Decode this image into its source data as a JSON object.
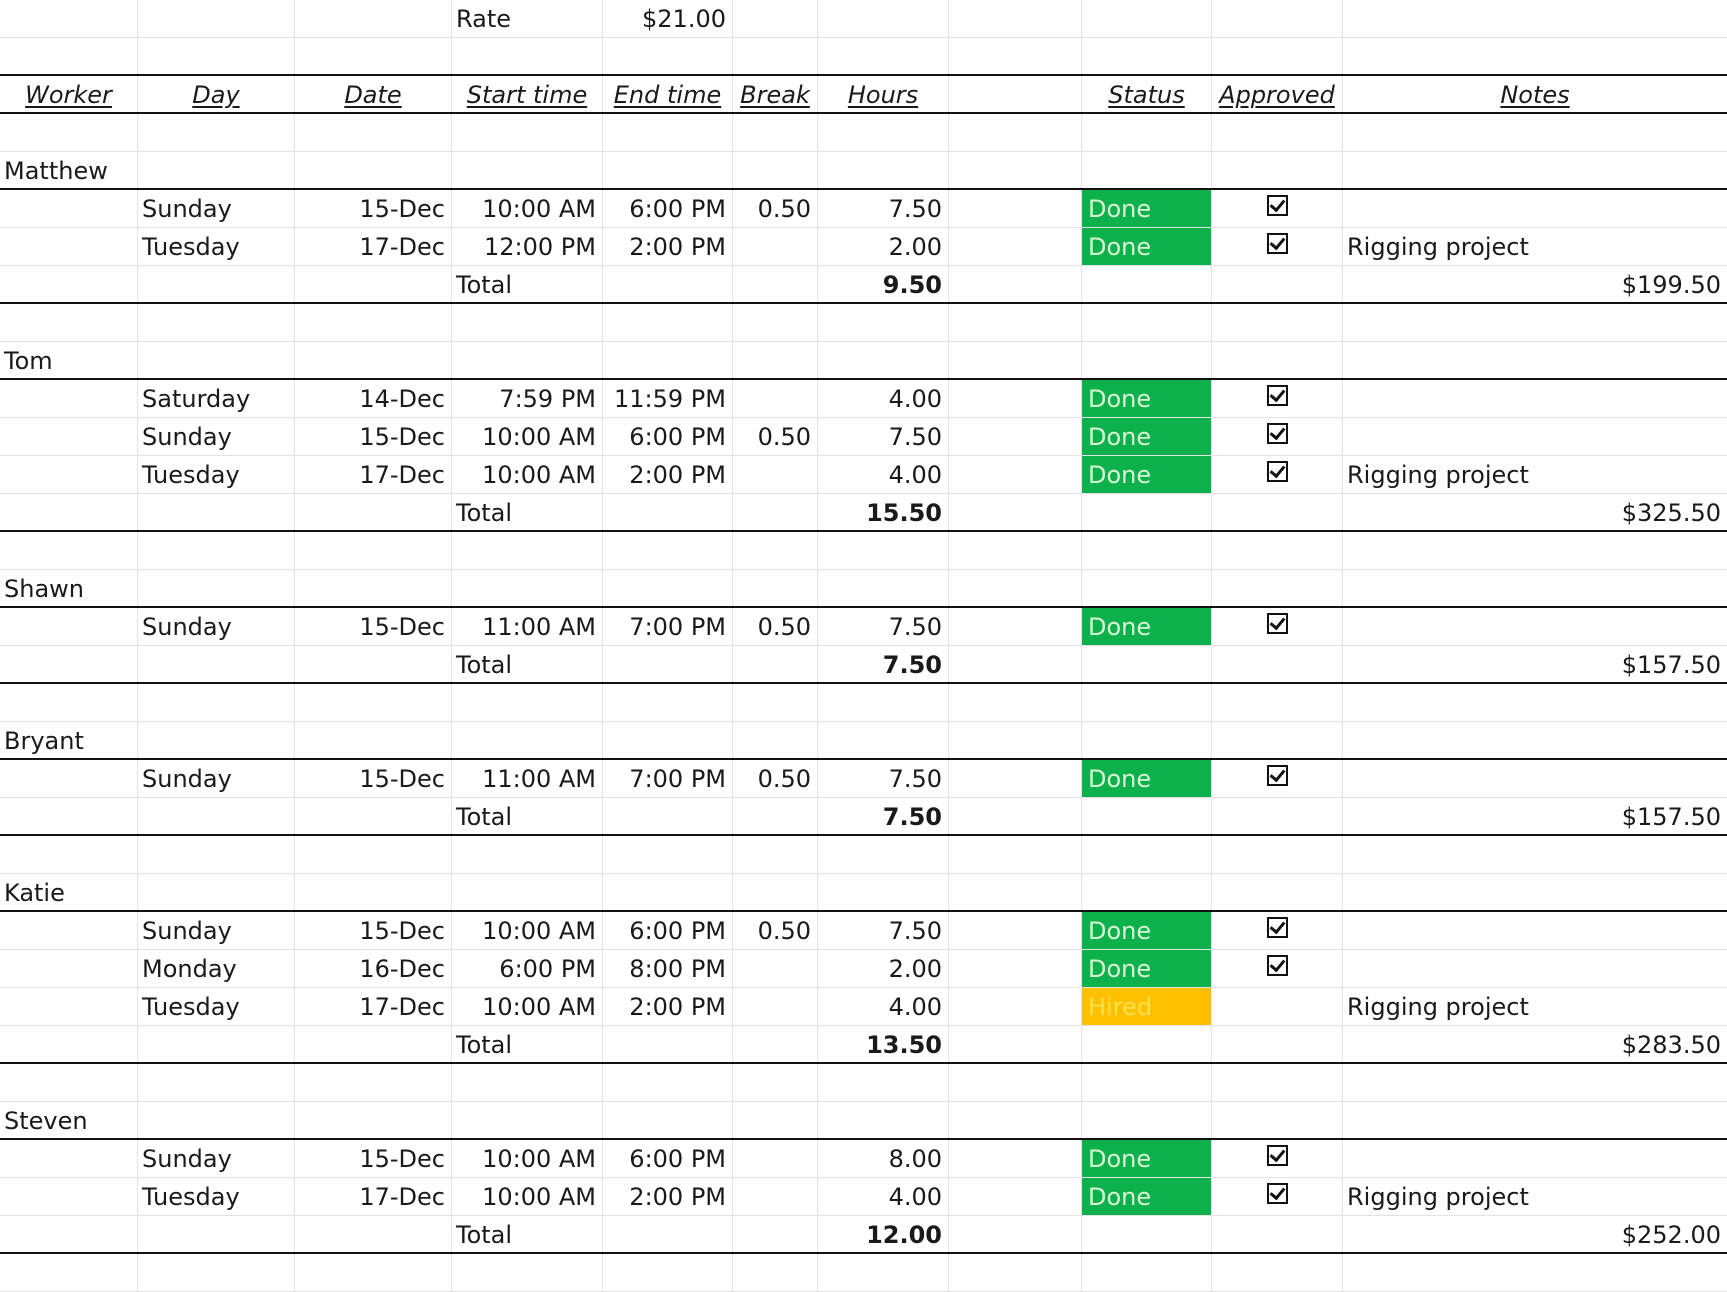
{
  "rate": {
    "label": "Rate",
    "value": "$21.00"
  },
  "headers": {
    "worker": "Worker",
    "day": "Day",
    "date": "Date",
    "start": "Start time",
    "end": "End time",
    "break": "Break",
    "hours": "Hours",
    "status": "Status",
    "approved": "Approved",
    "notes": "Notes"
  },
  "total_label": "Total",
  "colors": {
    "done": "#0cb14b",
    "hired": "#ffc000"
  },
  "workers": [
    {
      "name": "Matthew",
      "total_hours": "9.50",
      "total_pay": "$199.50",
      "rows": [
        {
          "day": "Sunday",
          "date": "15-Dec",
          "start": "10:00 AM",
          "end": "6:00 PM",
          "break": "0.50",
          "hours": "7.50",
          "status": "Done",
          "approved": true,
          "notes": ""
        },
        {
          "day": "Tuesday",
          "date": "17-Dec",
          "start": "12:00 PM",
          "end": "2:00 PM",
          "break": "",
          "hours": "2.00",
          "status": "Done",
          "approved": true,
          "notes": "Rigging project"
        }
      ]
    },
    {
      "name": "Tom",
      "total_hours": "15.50",
      "total_pay": "$325.50",
      "rows": [
        {
          "day": "Saturday",
          "date": "14-Dec",
          "start": "7:59 PM",
          "end": "11:59 PM",
          "break": "",
          "hours": "4.00",
          "status": "Done",
          "approved": true,
          "notes": ""
        },
        {
          "day": "Sunday",
          "date": "15-Dec",
          "start": "10:00 AM",
          "end": "6:00 PM",
          "break": "0.50",
          "hours": "7.50",
          "status": "Done",
          "approved": true,
          "notes": ""
        },
        {
          "day": "Tuesday",
          "date": "17-Dec",
          "start": "10:00 AM",
          "end": "2:00 PM",
          "break": "",
          "hours": "4.00",
          "status": "Done",
          "approved": true,
          "notes": "Rigging project"
        }
      ]
    },
    {
      "name": "Shawn",
      "total_hours": "7.50",
      "total_pay": "$157.50",
      "rows": [
        {
          "day": "Sunday",
          "date": "15-Dec",
          "start": "11:00 AM",
          "end": "7:00 PM",
          "break": "0.50",
          "hours": "7.50",
          "status": "Done",
          "approved": true,
          "notes": ""
        }
      ]
    },
    {
      "name": "Bryant",
      "total_hours": "7.50",
      "total_pay": "$157.50",
      "rows": [
        {
          "day": "Sunday",
          "date": "15-Dec",
          "start": "11:00 AM",
          "end": "7:00 PM",
          "break": "0.50",
          "hours": "7.50",
          "status": "Done",
          "approved": true,
          "notes": ""
        }
      ]
    },
    {
      "name": "Katie",
      "total_hours": "13.50",
      "total_pay": "$283.50",
      "rows": [
        {
          "day": "Sunday",
          "date": "15-Dec",
          "start": "10:00 AM",
          "end": "6:00 PM",
          "break": "0.50",
          "hours": "7.50",
          "status": "Done",
          "approved": true,
          "notes": ""
        },
        {
          "day": "Monday",
          "date": "16-Dec",
          "start": "6:00 PM",
          "end": "8:00 PM",
          "break": "",
          "hours": "2.00",
          "status": "Done",
          "approved": true,
          "notes": ""
        },
        {
          "day": "Tuesday",
          "date": "17-Dec",
          "start": "10:00 AM",
          "end": "2:00 PM",
          "break": "",
          "hours": "4.00",
          "status": "Hired",
          "approved": false,
          "notes": "Rigging project"
        }
      ]
    },
    {
      "name": "Steven",
      "total_hours": "12.00",
      "total_pay": "$252.00",
      "rows": [
        {
          "day": "Sunday",
          "date": "15-Dec",
          "start": "10:00 AM",
          "end": "6:00 PM",
          "break": "",
          "hours": "8.00",
          "status": "Done",
          "approved": true,
          "notes": ""
        },
        {
          "day": "Tuesday",
          "date": "17-Dec",
          "start": "10:00 AM",
          "end": "2:00 PM",
          "break": "",
          "hours": "4.00",
          "status": "Done",
          "approved": true,
          "notes": "Rigging project"
        }
      ]
    }
  ]
}
